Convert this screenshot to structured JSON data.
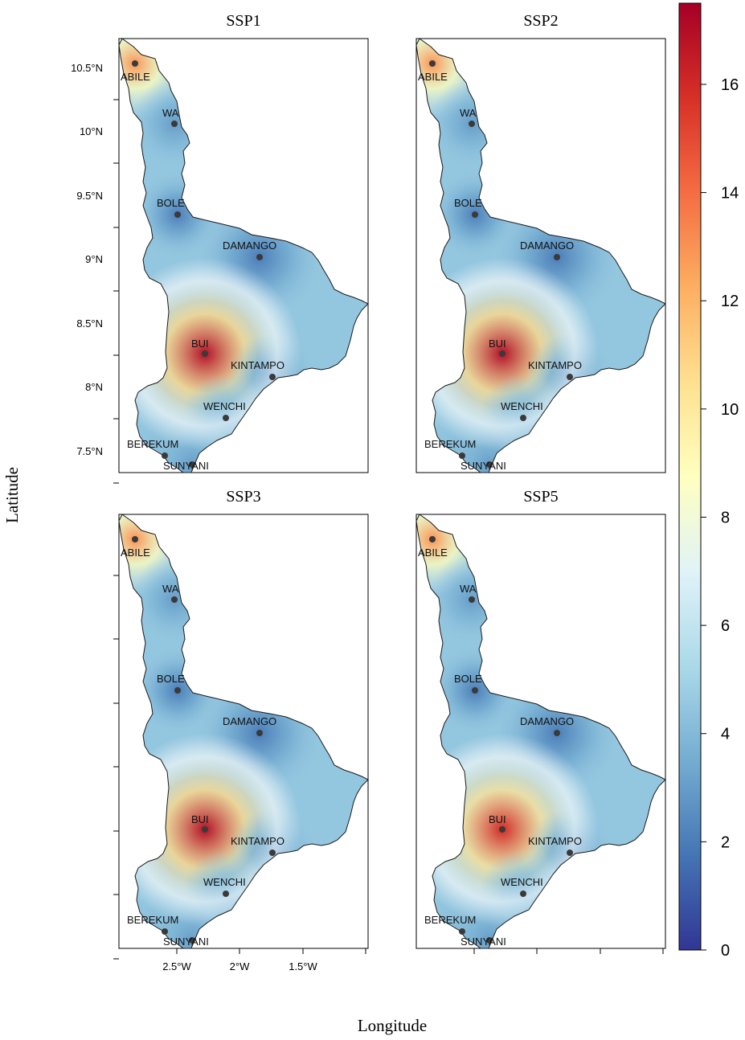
{
  "figure": {
    "xlabel": "Longitude",
    "ylabel": "Latitude"
  },
  "panels": [
    {
      "title": "SSP1",
      "key": "ssp1",
      "bui_peak": 17
    },
    {
      "title": "SSP2",
      "key": "ssp2",
      "bui_peak": 17
    },
    {
      "title": "SSP3",
      "key": "ssp3",
      "bui_peak": 17
    },
    {
      "title": "SSP5",
      "key": "ssp5",
      "bui_peak": 16
    }
  ],
  "axes": {
    "lat_ticks": [
      "10.5°N",
      "10°N",
      "9.5°N",
      "9°N",
      "8.5°N",
      "8°N",
      "7.5°N"
    ],
    "lon_ticks": [
      "2.5°W",
      "2°W",
      "1.5°W"
    ]
  },
  "cities": [
    {
      "name": "ABILE",
      "value": 13
    },
    {
      "name": "WA",
      "value": 3
    },
    {
      "name": "BOLE",
      "value": 2
    },
    {
      "name": "DAMANGO",
      "value": 2
    },
    {
      "name": "BUI",
      "value": 17
    },
    {
      "name": "KINTAMPO",
      "value": 3
    },
    {
      "name": "WENCHI",
      "value": 4
    },
    {
      "name": "BEREKUM",
      "value": 4
    },
    {
      "name": "SUNYANI",
      "value": 3
    }
  ],
  "colorbar": {
    "min": 0,
    "max": 17.5,
    "ticks": [
      "0",
      "2",
      "4",
      "6",
      "8",
      "10",
      "12",
      "14",
      "16"
    ],
    "colors": [
      "#313695",
      "#4575b4",
      "#74add1",
      "#abd9e9",
      "#e0f3f8",
      "#ffffbf",
      "#fee090",
      "#fdae61",
      "#f46d43",
      "#d73027",
      "#a50026"
    ]
  }
}
